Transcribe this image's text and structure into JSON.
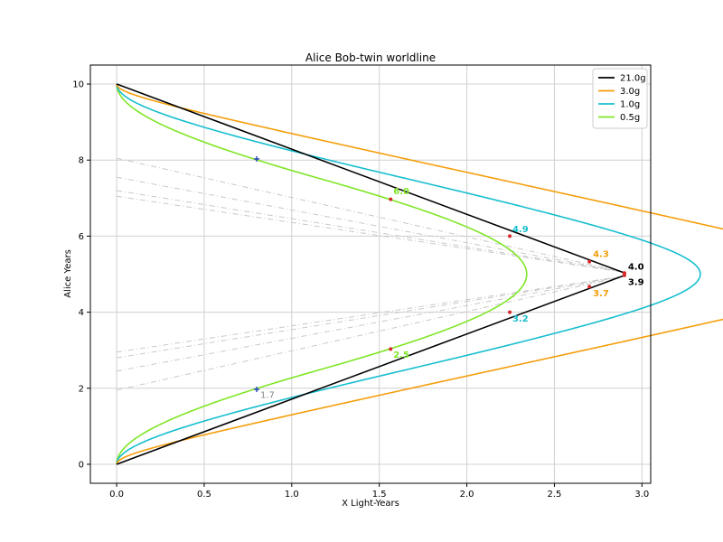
{
  "chart_data": {
    "type": "line",
    "title": "Alice Bob-twin worldline",
    "xlabel": "X Light-Years",
    "ylabel": "Alice Years",
    "xlim": [
      -0.15,
      3.05
    ],
    "ylim": [
      -0.5,
      10.5
    ],
    "xticks": [
      0.0,
      0.5,
      1.0,
      1.5,
      2.0,
      2.5,
      3.0
    ],
    "xtick_labels": [
      "0.0",
      "0.5",
      "1.0",
      "1.5",
      "2.0",
      "2.5",
      "3.0"
    ],
    "yticks": [
      0,
      2,
      4,
      6,
      8,
      10
    ],
    "ytick_labels": [
      "0",
      "2",
      "4",
      "6",
      "8",
      "10"
    ],
    "grid": true,
    "legend_position": "top-right",
    "series": [
      {
        "name": "21.0g",
        "color": "#000000",
        "accel": 21.0
      },
      {
        "name": "3.0g",
        "color": "#f59e0b",
        "accel": 3.0
      },
      {
        "name": "1.0g",
        "color": "#17becf",
        "accel": 1.0
      },
      {
        "name": "0.5g",
        "color": "#7fe626",
        "accel": 0.5
      }
    ],
    "simultaneity_lines": {
      "color": "#c8c8c8",
      "style": "dash-dot",
      "lines": [
        {
          "x0": 0.0,
          "y0": 8.05,
          "x1": 2.9,
          "y1": 5.05
        },
        {
          "x0": 0.0,
          "y0": 7.55,
          "x1": 2.9,
          "y1": 5.05
        },
        {
          "x0": 0.0,
          "y0": 7.2,
          "x1": 2.9,
          "y1": 5.05
        },
        {
          "x0": 0.0,
          "y0": 7.05,
          "x1": 2.9,
          "y1": 5.05
        },
        {
          "x0": 0.0,
          "y0": 2.95,
          "x1": 2.9,
          "y1": 4.95
        },
        {
          "x0": 0.0,
          "y0": 2.8,
          "x1": 2.9,
          "y1": 4.95
        },
        {
          "x0": 0.0,
          "y0": 2.45,
          "x1": 2.9,
          "y1": 4.95
        },
        {
          "x0": 0.0,
          "y0": 1.95,
          "x1": 2.9,
          "y1": 4.95
        }
      ]
    },
    "markers": [
      {
        "x": 1.565,
        "y": 6.97,
        "color": "#d62728",
        "shape": "dot"
      },
      {
        "x": 1.565,
        "y": 3.03,
        "color": "#d62728",
        "shape": "dot"
      },
      {
        "x": 2.245,
        "y": 6.0,
        "color": "#d62728",
        "shape": "dot"
      },
      {
        "x": 2.245,
        "y": 4.0,
        "color": "#d62728",
        "shape": "dot"
      },
      {
        "x": 2.7,
        "y": 5.33,
        "color": "#d62728",
        "shape": "dot"
      },
      {
        "x": 2.7,
        "y": 4.67,
        "color": "#d62728",
        "shape": "dot"
      },
      {
        "x": 2.9,
        "y": 5.03,
        "color": "#d62728",
        "shape": "dot"
      },
      {
        "x": 2.9,
        "y": 4.97,
        "color": "#d62728",
        "shape": "dot"
      },
      {
        "x": 0.8,
        "y": 8.03,
        "color": "#1f3fbf",
        "shape": "plus"
      },
      {
        "x": 0.8,
        "y": 1.97,
        "color": "#1f3fbf",
        "shape": "plus"
      }
    ],
    "annotations": [
      {
        "text": "6.0",
        "x": 1.58,
        "y": 7.1,
        "color": "#7fe626",
        "bold": true
      },
      {
        "text": "2.5",
        "x": 1.58,
        "y": 2.8,
        "color": "#7fe626",
        "bold": true
      },
      {
        "text": "4.9",
        "x": 2.26,
        "y": 6.1,
        "color": "#17becf",
        "bold": true
      },
      {
        "text": "3.2",
        "x": 2.26,
        "y": 3.75,
        "color": "#17becf",
        "bold": true
      },
      {
        "text": "4.3",
        "x": 2.72,
        "y": 5.45,
        "color": "#f59e0b",
        "bold": true
      },
      {
        "text": "3.7",
        "x": 2.72,
        "y": 4.42,
        "color": "#f59e0b",
        "bold": true
      },
      {
        "text": "4.0",
        "x": 2.92,
        "y": 5.12,
        "color": "#000000",
        "bold": true
      },
      {
        "text": "3.9",
        "x": 2.92,
        "y": 4.72,
        "color": "#000000",
        "bold": true
      },
      {
        "text": "1.7",
        "x": 0.82,
        "y": 1.75,
        "color": "#888888",
        "bold": false
      }
    ]
  }
}
